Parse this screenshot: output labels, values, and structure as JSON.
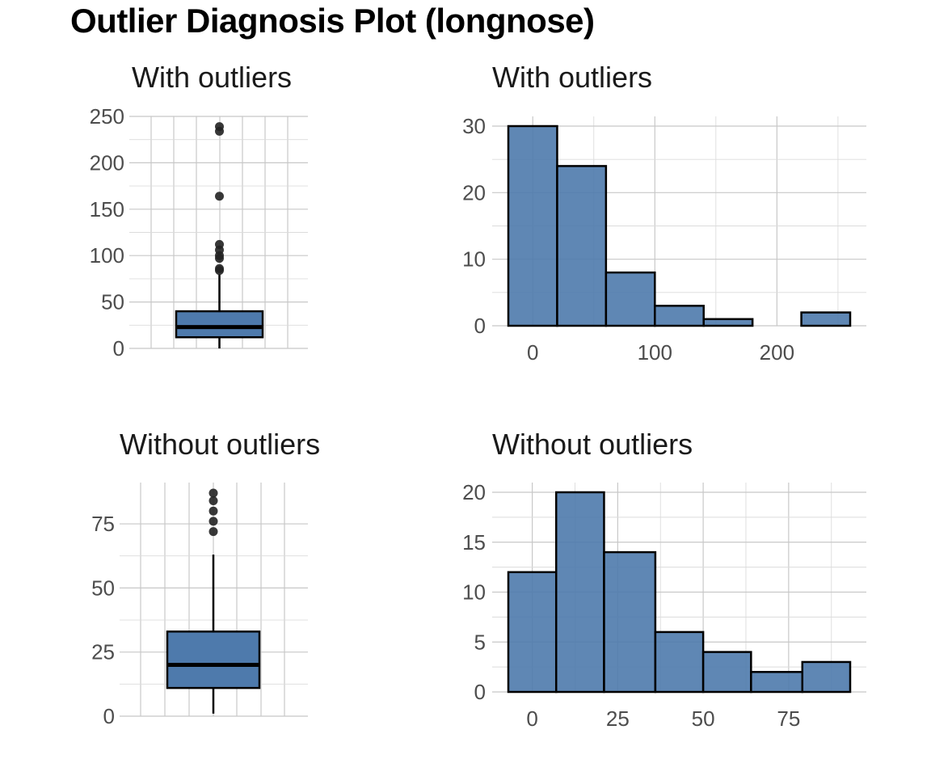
{
  "title": "Outlier Diagnosis Plot (longnose)",
  "fill_color": "#4e7aac",
  "point_color": "#222222",
  "chart_data": [
    {
      "type": "box",
      "title": "With outliers",
      "ylim": [
        0,
        250
      ],
      "yticks": [
        0,
        50,
        100,
        150,
        200,
        250
      ],
      "grid": true,
      "box": {
        "whisker_low": 0,
        "q1": 12,
        "median": 23,
        "q3": 40,
        "whisker_high": 80
      },
      "outliers": [
        84,
        86,
        97,
        100,
        106,
        112,
        164,
        234,
        239
      ]
    },
    {
      "type": "bar",
      "title": "With outliers",
      "xlim": [
        -20,
        260
      ],
      "ylim": [
        0,
        30
      ],
      "xticks": [
        0,
        100,
        200
      ],
      "yticks": [
        0,
        10,
        20,
        30
      ],
      "grid": true,
      "bins": [
        {
          "from": -20,
          "to": 20,
          "count": 30
        },
        {
          "from": 20,
          "to": 60,
          "count": 24
        },
        {
          "from": 60,
          "to": 100,
          "count": 8
        },
        {
          "from": 100,
          "to": 140,
          "count": 3
        },
        {
          "from": 140,
          "to": 180,
          "count": 1
        },
        {
          "from": 180,
          "to": 220,
          "count": 0
        },
        {
          "from": 220,
          "to": 260,
          "count": 2
        }
      ]
    },
    {
      "type": "box",
      "title": "Without outliers",
      "ylim": [
        0,
        87
      ],
      "yticks": [
        0,
        25,
        50,
        75
      ],
      "grid": true,
      "box": {
        "whisker_low": 1,
        "q1": 11,
        "median": 20,
        "q3": 33,
        "whisker_high": 63
      },
      "outliers": [
        72,
        76,
        80,
        84,
        87
      ]
    },
    {
      "type": "bar",
      "title": "Without outliers",
      "xlim": [
        -7,
        93
      ],
      "ylim": [
        0,
        20
      ],
      "xticks": [
        0,
        25,
        50,
        75
      ],
      "yticks": [
        0,
        5,
        10,
        15,
        20
      ],
      "grid": true,
      "bins": [
        {
          "from": -7,
          "to": 7,
          "count": 12
        },
        {
          "from": 7,
          "to": 21,
          "count": 20
        },
        {
          "from": 21,
          "to": 36,
          "count": 14
        },
        {
          "from": 36,
          "to": 50,
          "count": 6
        },
        {
          "from": 50,
          "to": 64,
          "count": 4
        },
        {
          "from": 64,
          "to": 79,
          "count": 2
        },
        {
          "from": 79,
          "to": 93,
          "count": 3
        }
      ]
    }
  ]
}
